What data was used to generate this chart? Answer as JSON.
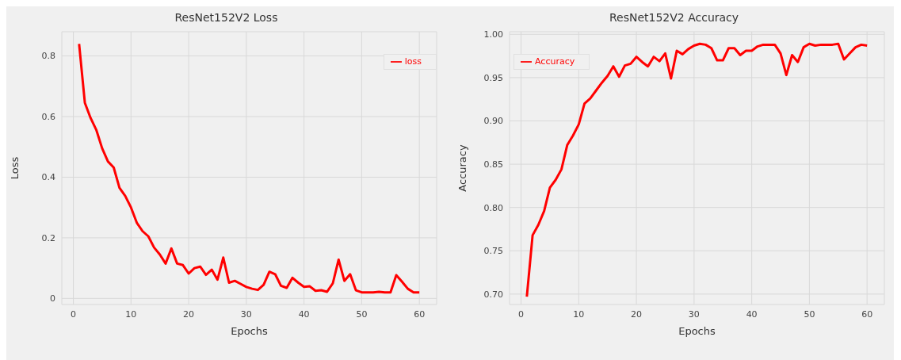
{
  "chart_data": [
    {
      "type": "line",
      "title": "ResNet152V2 Loss",
      "xlabel": "Epochs",
      "ylabel": "Loss",
      "x": [
        1,
        2,
        3,
        4,
        5,
        6,
        7,
        8,
        9,
        10,
        11,
        12,
        13,
        14,
        15,
        16,
        17,
        18,
        19,
        20,
        21,
        22,
        23,
        24,
        25,
        26,
        27,
        28,
        29,
        30,
        31,
        32,
        33,
        34,
        35,
        36,
        37,
        38,
        39,
        40,
        41,
        42,
        43,
        44,
        45,
        46,
        47,
        48,
        49,
        50,
        51,
        52,
        53,
        54,
        55,
        56,
        57,
        58,
        59,
        60
      ],
      "series": [
        {
          "name": "loss",
          "color": "#ff0000",
          "values": [
            0.84,
            0.645,
            0.595,
            0.555,
            0.495,
            0.452,
            0.432,
            0.365,
            0.338,
            0.3,
            0.25,
            0.222,
            0.205,
            0.168,
            0.145,
            0.115,
            0.165,
            0.115,
            0.11,
            0.082,
            0.1,
            0.105,
            0.078,
            0.095,
            0.062,
            0.135,
            0.052,
            0.058,
            0.048,
            0.038,
            0.032,
            0.028,
            0.045,
            0.088,
            0.08,
            0.042,
            0.035,
            0.068,
            0.052,
            0.038,
            0.04,
            0.025,
            0.027,
            0.022,
            0.05,
            0.128,
            0.058,
            0.08,
            0.027,
            0.02,
            0.02,
            0.02,
            0.022,
            0.02,
            0.02,
            0.077,
            0.055,
            0.032,
            0.02,
            0.02
          ]
        }
      ],
      "xlim": [
        -2,
        63
      ],
      "xticks": [
        0,
        10,
        20,
        30,
        40,
        50,
        60
      ],
      "ylim": [
        -0.02,
        0.88
      ],
      "yticks": [
        0.0,
        {
          "value": 0.2,
          "label": "0.2"
        },
        {
          "value": 0.4,
          "label": "0.4"
        },
        {
          "value": 0.6,
          "label": "0.6"
        },
        {
          "value": 0.8,
          "label": "0.8"
        }
      ],
      "grid": true,
      "legend": "top right",
      "marker": "none",
      "line_style": "solid"
    },
    {
      "type": "line",
      "title": "ResNet152V2 Accuracy",
      "xlabel": "Epochs",
      "ylabel": "Accuracy",
      "x": [
        1,
        2,
        3,
        4,
        5,
        6,
        7,
        8,
        9,
        10,
        11,
        12,
        13,
        14,
        15,
        16,
        17,
        18,
        19,
        20,
        21,
        22,
        23,
        24,
        25,
        26,
        27,
        28,
        29,
        30,
        31,
        32,
        33,
        34,
        35,
        36,
        37,
        38,
        39,
        40,
        41,
        42,
        43,
        44,
        45,
        46,
        47,
        48,
        49,
        50,
        51,
        52,
        53,
        54,
        55,
        56,
        57,
        58,
        59,
        60
      ],
      "series": [
        {
          "name": "Accuracy",
          "color": "#ff0000",
          "values": [
            0.697,
            0.768,
            0.78,
            0.796,
            0.823,
            0.832,
            0.844,
            0.872,
            0.883,
            0.896,
            0.92,
            0.926,
            0.935,
            0.944,
            0.952,
            0.963,
            0.951,
            0.964,
            0.966,
            0.974,
            0.968,
            0.963,
            0.974,
            0.969,
            0.978,
            0.949,
            0.981,
            0.977,
            0.983,
            0.987,
            0.989,
            0.988,
            0.984,
            0.97,
            0.97,
            0.984,
            0.984,
            0.976,
            0.981,
            0.981,
            0.986,
            0.988,
            0.988,
            0.988,
            0.978,
            0.953,
            0.976,
            0.968,
            0.985,
            0.989,
            0.987,
            0.988,
            0.988,
            0.988,
            0.989,
            0.971,
            0.978,
            0.985,
            0.988,
            0.987
          ]
        }
      ],
      "xlim": [
        -2,
        63
      ],
      "xticks": [
        0,
        10,
        20,
        30,
        40,
        50,
        60
      ],
      "ylim": [
        0.688,
        1.003
      ],
      "yticks": [
        {
          "value": 0.7,
          "label": "0.70"
        },
        {
          "value": 0.75,
          "label": "0.75"
        },
        {
          "value": 0.8,
          "label": "0.80"
        },
        {
          "value": 0.85,
          "label": "0.85"
        },
        {
          "value": 0.9,
          "label": "0.90"
        },
        {
          "value": 0.95,
          "label": "0.95"
        },
        {
          "value": 1.0,
          "label": "1.00"
        }
      ],
      "grid": true,
      "legend": "top left",
      "marker": "none",
      "line_style": "solid"
    }
  ]
}
